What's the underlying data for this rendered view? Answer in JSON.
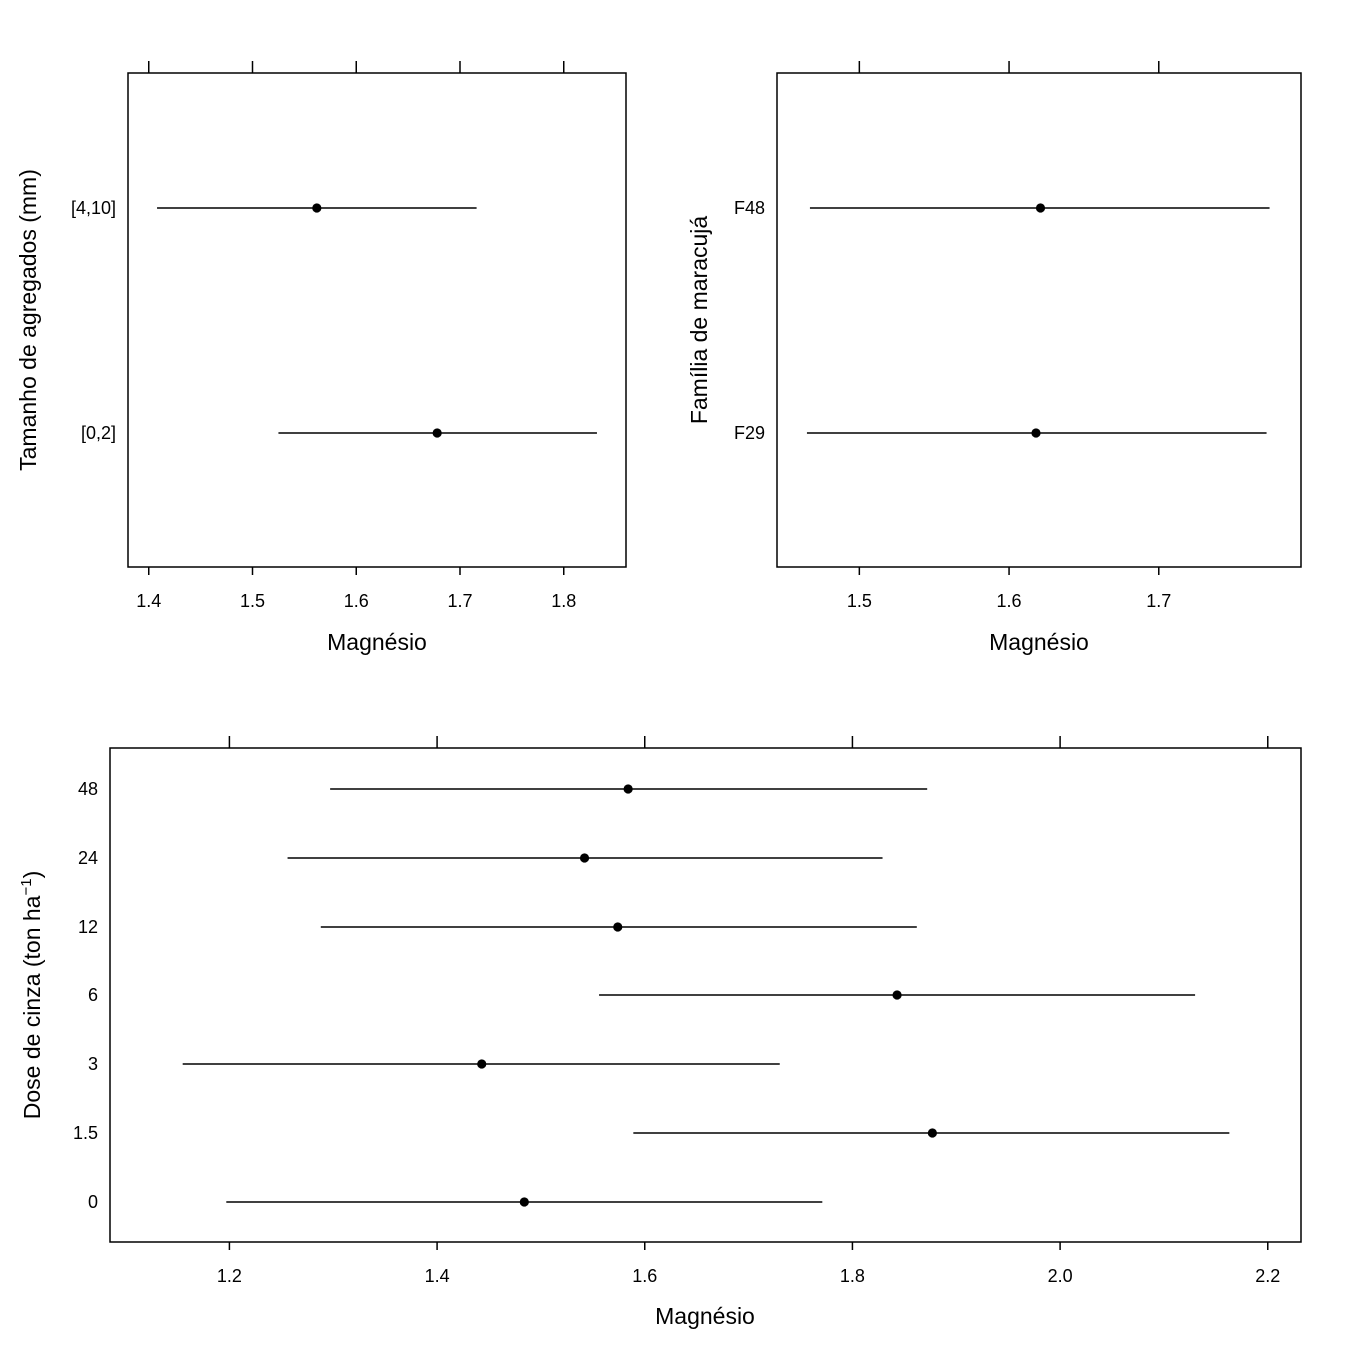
{
  "chart_data": [
    {
      "type": "scatter",
      "subtype": "interval",
      "xlabel": "Magnésio",
      "ylabel": "Tamanho de agregados (mm)",
      "xlim": [
        1.38,
        1.86
      ],
      "xticks": [
        "1.4",
        "1.5",
        "1.6",
        "1.7",
        "1.8"
      ],
      "categories": [
        "[4,10]",
        "[0,2]"
      ],
      "estimate": [
        1.562,
        1.678
      ],
      "lower": [
        1.408,
        1.525
      ],
      "upper": [
        1.716,
        1.832
      ]
    },
    {
      "type": "scatter",
      "subtype": "interval",
      "xlabel": "Magnésio",
      "ylabel": "Família de maracujá",
      "xlim": [
        1.445,
        1.795
      ],
      "xticks": [
        "1.5",
        "1.6",
        "1.7"
      ],
      "categories": [
        "F48",
        "F29"
      ],
      "estimate": [
        1.621,
        1.618
      ],
      "lower": [
        1.467,
        1.465
      ],
      "upper": [
        1.774,
        1.772
      ]
    },
    {
      "type": "scatter",
      "subtype": "interval",
      "xlabel": "Magnésio",
      "ylabel": "Dose de cinza (ton ha−1)",
      "ylabel_main": "Dose de cinza (ton ha",
      "ylabel_sup": "−1",
      "ylabel_end": ")",
      "xlim": [
        1.085,
        2.232
      ],
      "xticks": [
        "1.2",
        "1.4",
        "1.6",
        "1.8",
        "2.0",
        "2.2"
      ],
      "categories": [
        "48",
        "24",
        "12",
        "6",
        "3",
        "1.5",
        "0"
      ],
      "estimate": [
        1.584,
        1.542,
        1.574,
        1.843,
        1.443,
        1.877,
        1.484
      ],
      "lower": [
        1.297,
        1.256,
        1.288,
        1.556,
        1.155,
        1.589,
        1.197
      ],
      "upper": [
        1.872,
        1.829,
        1.862,
        2.13,
        1.73,
        2.163,
        1.771
      ]
    }
  ]
}
